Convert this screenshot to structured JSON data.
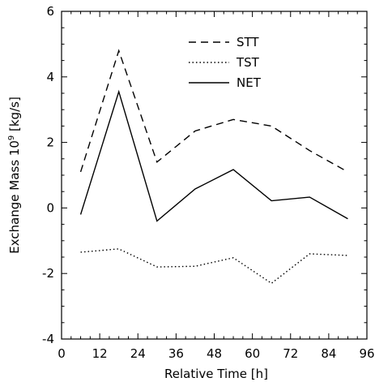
{
  "chart_data": {
    "type": "line",
    "xlabel": "Relative Time [h]",
    "ylabel_main": "Exchange Mass 10",
    "ylabel_exp": "9",
    "ylabel_unit": " [kg/s]",
    "xlim": [
      0,
      96
    ],
    "ylim": [
      -4,
      6
    ],
    "x_ticks": [
      "0",
      "12",
      "24",
      "36",
      "48",
      "60",
      "72",
      "84",
      "96"
    ],
    "y_ticks": [
      "-4",
      "-2",
      "0",
      "2",
      "4",
      "6"
    ],
    "grid": false,
    "legend_position": "top-right",
    "x": [
      6,
      18,
      30,
      42,
      54,
      66,
      78,
      90
    ],
    "series": [
      {
        "name": "STT",
        "style": "dashed",
        "values": [
          1.1,
          4.8,
          1.4,
          2.35,
          2.7,
          2.5,
          1.75,
          1.1
        ]
      },
      {
        "name": "TST",
        "style": "dotted",
        "values": [
          -1.35,
          -1.25,
          -1.8,
          -1.78,
          -1.52,
          -2.3,
          -1.4,
          -1.45
        ]
      },
      {
        "name": "NET",
        "style": "solid",
        "values": [
          -0.2,
          3.55,
          -0.4,
          0.58,
          1.17,
          0.22,
          0.33,
          -0.33
        ]
      }
    ]
  }
}
